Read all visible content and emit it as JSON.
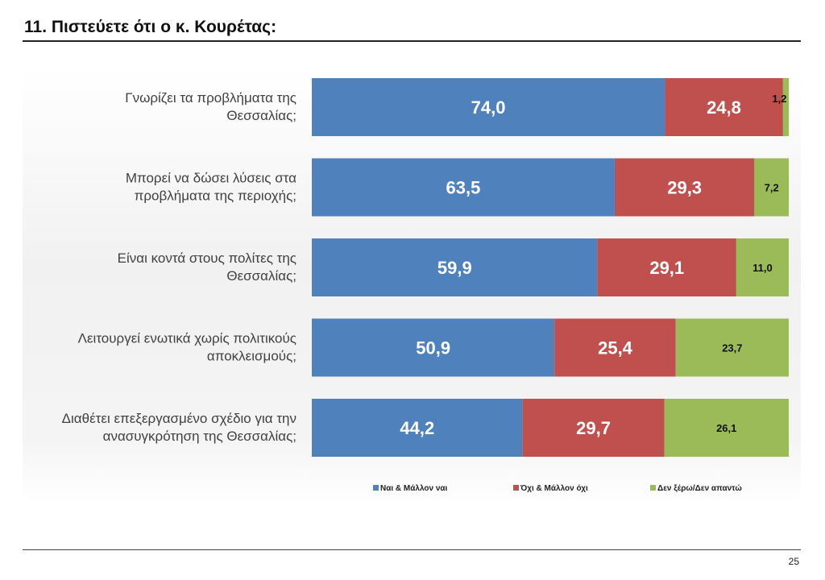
{
  "page": {
    "title": "11. Πιστεύετε ότι ο κ. Κουρέτας:",
    "page_number": "25"
  },
  "chart_data": {
    "type": "bar",
    "orientation": "horizontal",
    "stacked": true,
    "categories": [
      [
        "Γνωρίζει τα προβλήματα της",
        "Θεσσαλίας;"
      ],
      [
        "Μπορεί να δώσει λύσεις στα",
        "προβλήματα της περιοχής;"
      ],
      [
        "Είναι κοντά στους πολίτες της",
        "Θεσσαλίας;"
      ],
      [
        "Λειτουργεί ενωτικά χωρίς πολιτικούς",
        "αποκλεισμούς;"
      ],
      [
        "Διαθέτει επεξεργασμένο σχέδιο για την",
        "ανασυγκρότηση της Θεσσαλίας;"
      ]
    ],
    "series": [
      {
        "name": "Ναι & Μάλλον ναι",
        "color": "#4f81bd",
        "values": [
          74.0,
          63.5,
          59.9,
          50.9,
          44.2
        ],
        "labels": [
          "74,0",
          "63,5",
          "59,9",
          "50,9",
          "44,2"
        ]
      },
      {
        "name": "Όχι & Μάλλον όχι",
        "color": "#c0504d",
        "values": [
          24.8,
          29.3,
          29.1,
          25.4,
          29.7
        ],
        "labels": [
          "24,8",
          "29,3",
          "29,1",
          "25,4",
          "29,7"
        ]
      },
      {
        "name": "Δεν ξέρω/Δεν απαντώ",
        "color": "#9bbb59",
        "values": [
          1.2,
          7.2,
          11.0,
          23.7,
          26.1
        ],
        "labels": [
          "1,2",
          "7,2",
          "11,0",
          "23,7",
          "26,1"
        ]
      }
    ],
    "xlim": [
      0,
      100
    ],
    "legend": "bottom",
    "grid": false
  }
}
